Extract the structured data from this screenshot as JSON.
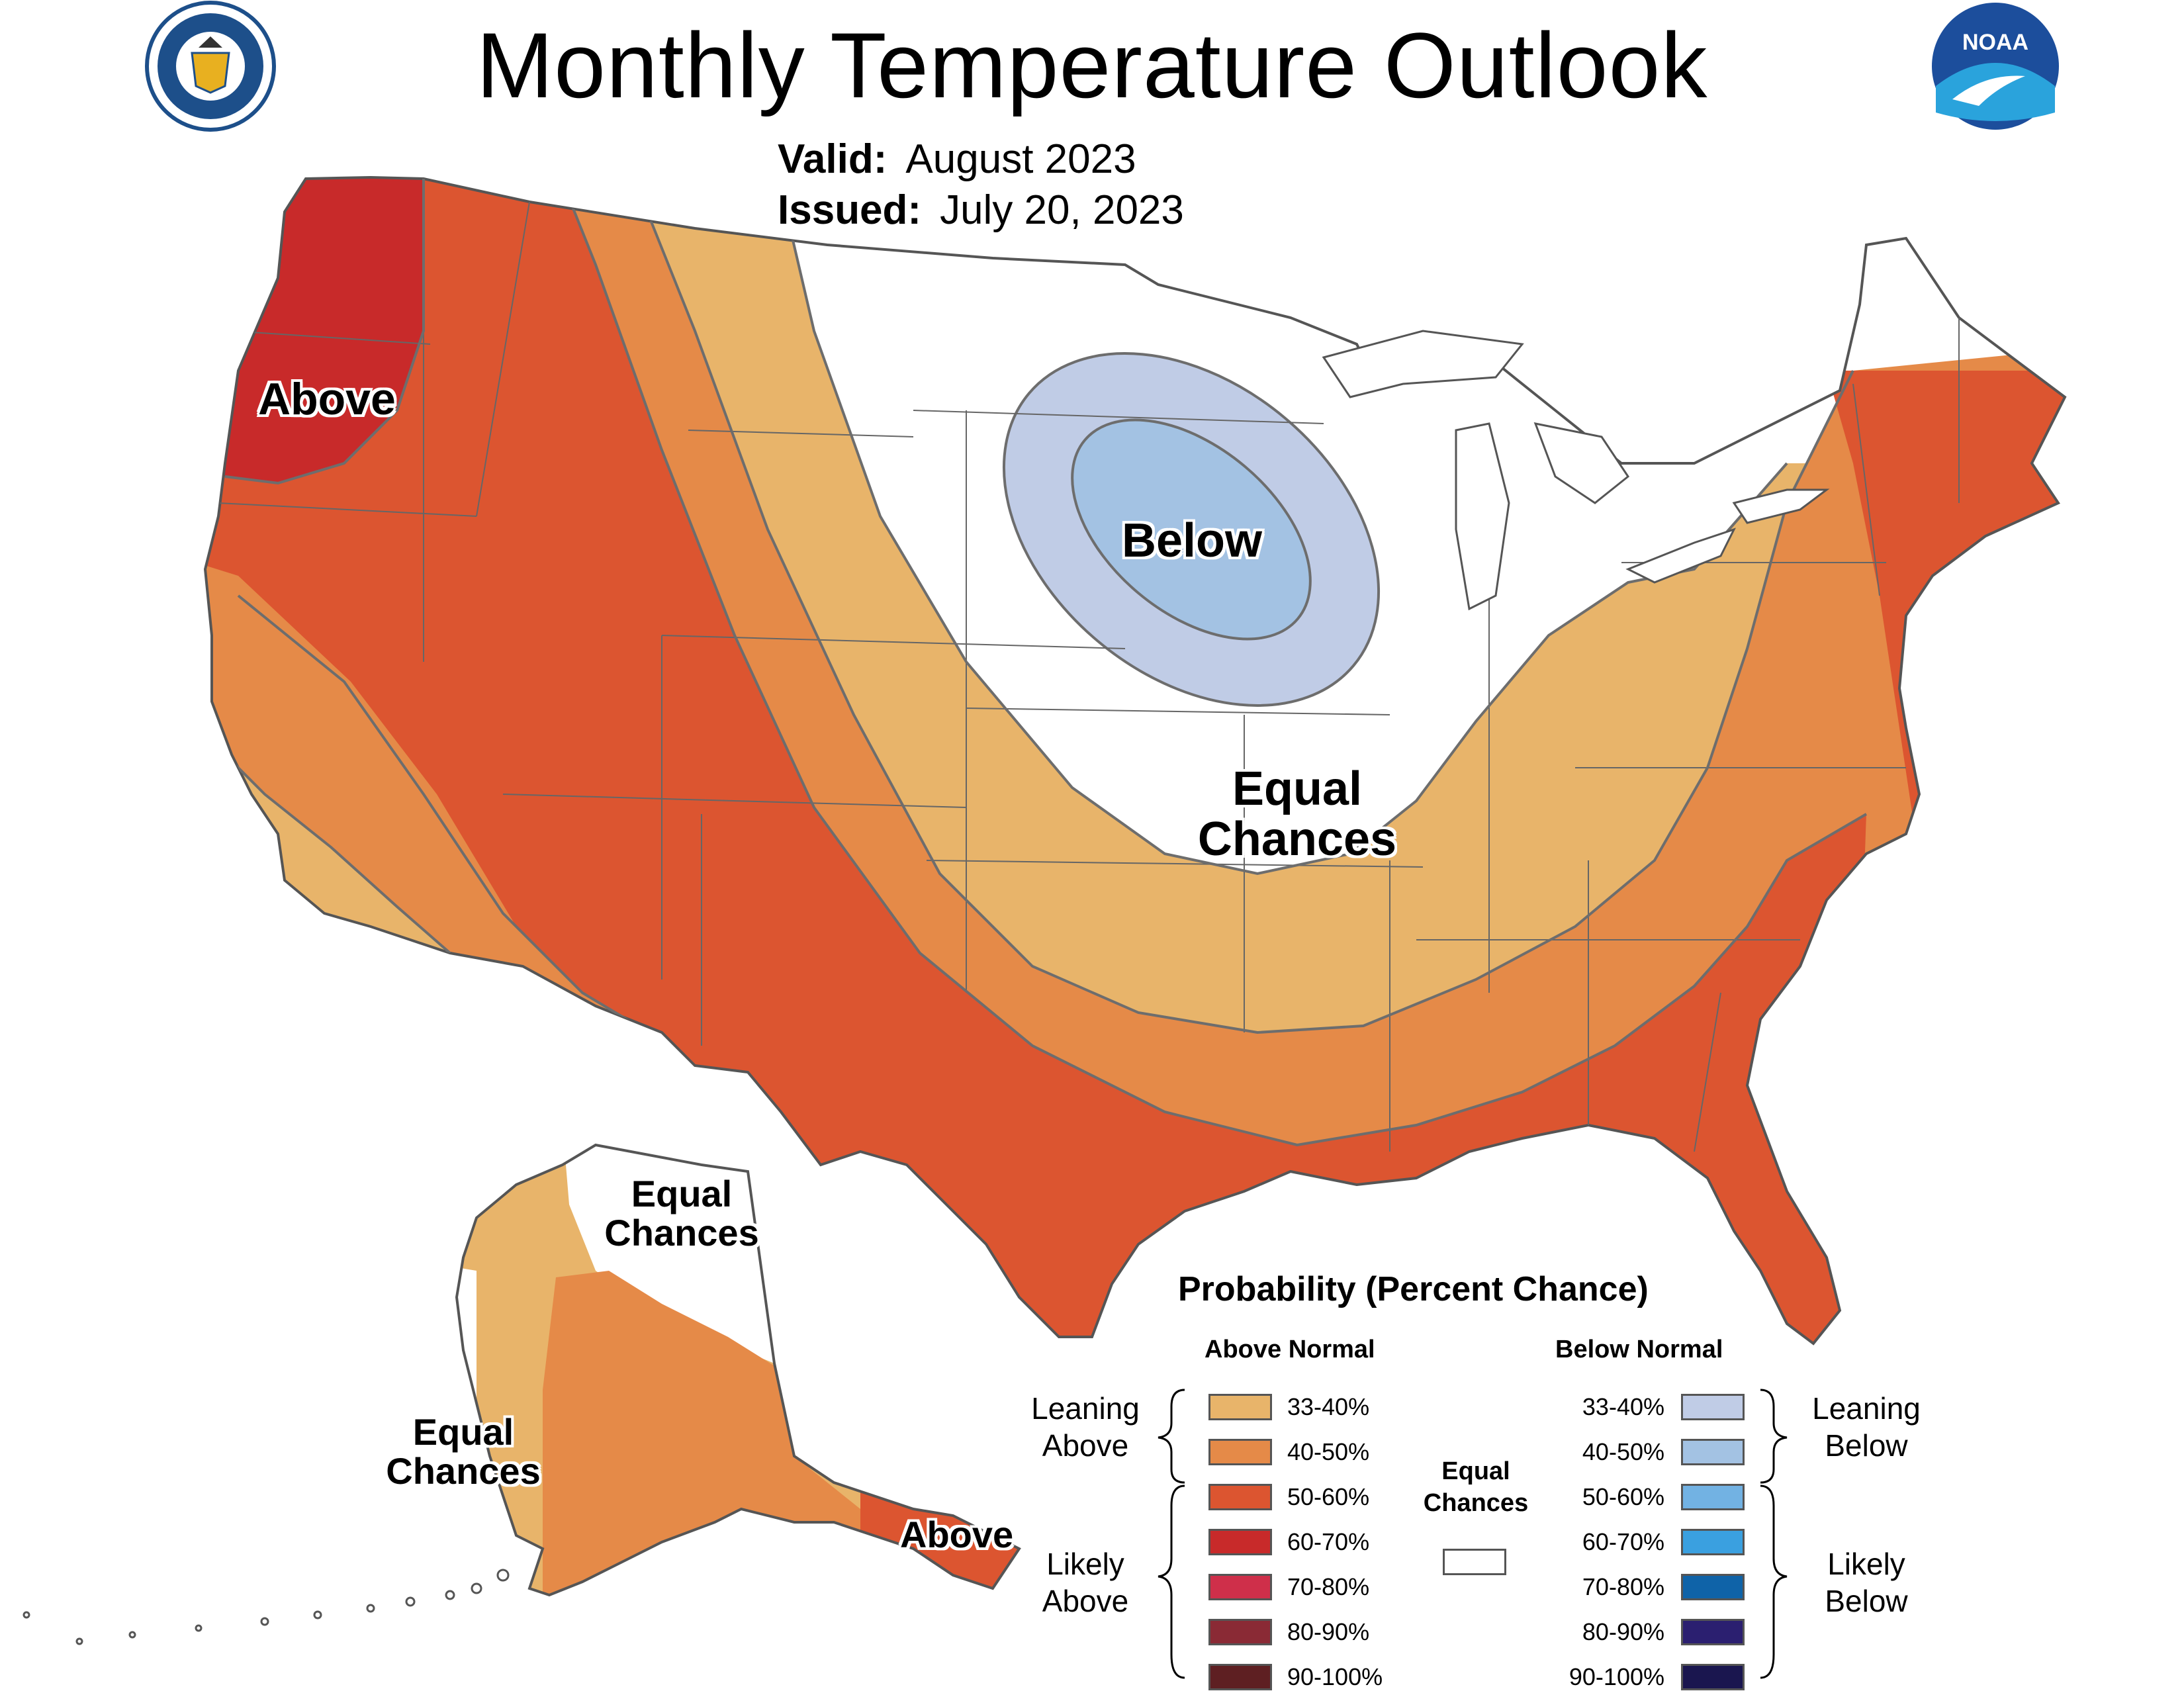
{
  "title": "Monthly Temperature Outlook",
  "valid": {
    "label": "Valid:",
    "value": "August 2023"
  },
  "issued": {
    "label": "Issued:",
    "value": "July 20, 2023"
  },
  "logos": {
    "commerce": {
      "name": "department-of-commerce-seal",
      "text": "DEPARTMENT OF COMMERCE · UNITED STATES OF AMERICA"
    },
    "noaa": {
      "name": "noaa-logo",
      "text": "NOAA"
    }
  },
  "region_labels": {
    "conus_above": "Above",
    "conus_below": "Below",
    "conus_equal_line1": "Equal",
    "conus_equal_line2": "Chances",
    "ak_equal_north_line1": "Equal",
    "ak_equal_north_line2": "Chances",
    "ak_equal_west_line1": "Equal",
    "ak_equal_west_line2": "Chances",
    "ak_above": "Above"
  },
  "legend": {
    "title": "Probability (Percent Chance)",
    "above_header": "Above Normal",
    "below_header": "Below Normal",
    "leaning_above": [
      "Leaning",
      "Above"
    ],
    "likely_above": [
      "Likely",
      "Above"
    ],
    "leaning_below": [
      "Leaning",
      "Below"
    ],
    "likely_below": [
      "Likely",
      "Below"
    ],
    "equal_chances": [
      "Equal",
      "Chances"
    ],
    "equal_chances_color": "#ffffff",
    "above_items": [
      {
        "label": "33-40%",
        "color": "#e8b46a"
      },
      {
        "label": "40-50%",
        "color": "#e58a48"
      },
      {
        "label": "50-60%",
        "color": "#dc5530"
      },
      {
        "label": "60-70%",
        "color": "#c82a2a"
      },
      {
        "label": "70-80%",
        "color": "#cf2f4a"
      },
      {
        "label": "80-90%",
        "color": "#8a2a35"
      },
      {
        "label": "90-100%",
        "color": "#5e1f22"
      }
    ],
    "below_items": [
      {
        "label": "33-40%",
        "color": "#c0cce6"
      },
      {
        "label": "40-50%",
        "color": "#a3c2e3"
      },
      {
        "label": "50-60%",
        "color": "#72b2e3"
      },
      {
        "label": "60-70%",
        "color": "#3aa0e0"
      },
      {
        "label": "70-80%",
        "color": "#0f63a8"
      },
      {
        "label": "80-90%",
        "color": "#2b1f70"
      },
      {
        "label": "90-100%",
        "color": "#1a164f"
      }
    ]
  }
}
